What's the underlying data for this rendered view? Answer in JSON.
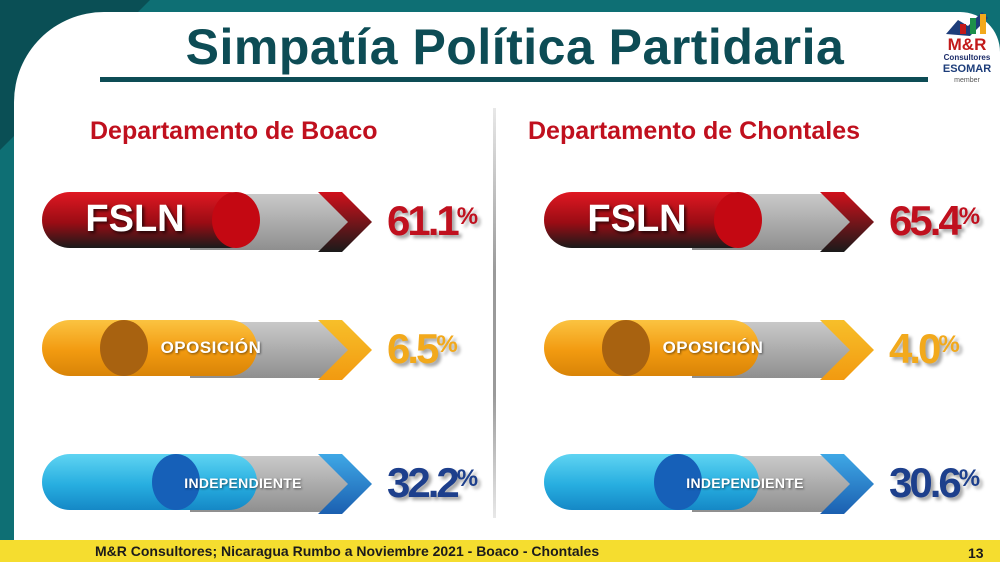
{
  "title": "Simpatía Política Partidaria",
  "logo": {
    "brand": "M&R",
    "sub": "Consultores",
    "esomar": "ESOMAR",
    "member": "member"
  },
  "footer": {
    "source": "M&R Consultores; Nicaragua Rumbo a Noviembre 2021 - Boaco - Chontales",
    "page": "13"
  },
  "colors": {
    "fsln": "#c0101e",
    "oposicion": "#f2a91c",
    "independiente": "#1d3f8c",
    "title": "#0d4c55"
  },
  "chart_data": [
    {
      "type": "bar",
      "title": "Departamento de Boaco",
      "categories": [
        "FSLN",
        "OPOSICIÓN",
        "INDEPENDIENTE"
      ],
      "values": [
        61.1,
        6.5,
        32.2
      ],
      "value_labels": [
        "61.1",
        "6.5",
        "32.2"
      ],
      "unit": "%"
    },
    {
      "type": "bar",
      "title": "Departamento de Chontales",
      "categories": [
        "FSLN",
        "OPOSICIÓN",
        "INDEPENDIENTE"
      ],
      "values": [
        65.4,
        4.0,
        30.6
      ],
      "value_labels": [
        "65.4",
        "4.0",
        "30.6"
      ],
      "unit": "%"
    }
  ]
}
